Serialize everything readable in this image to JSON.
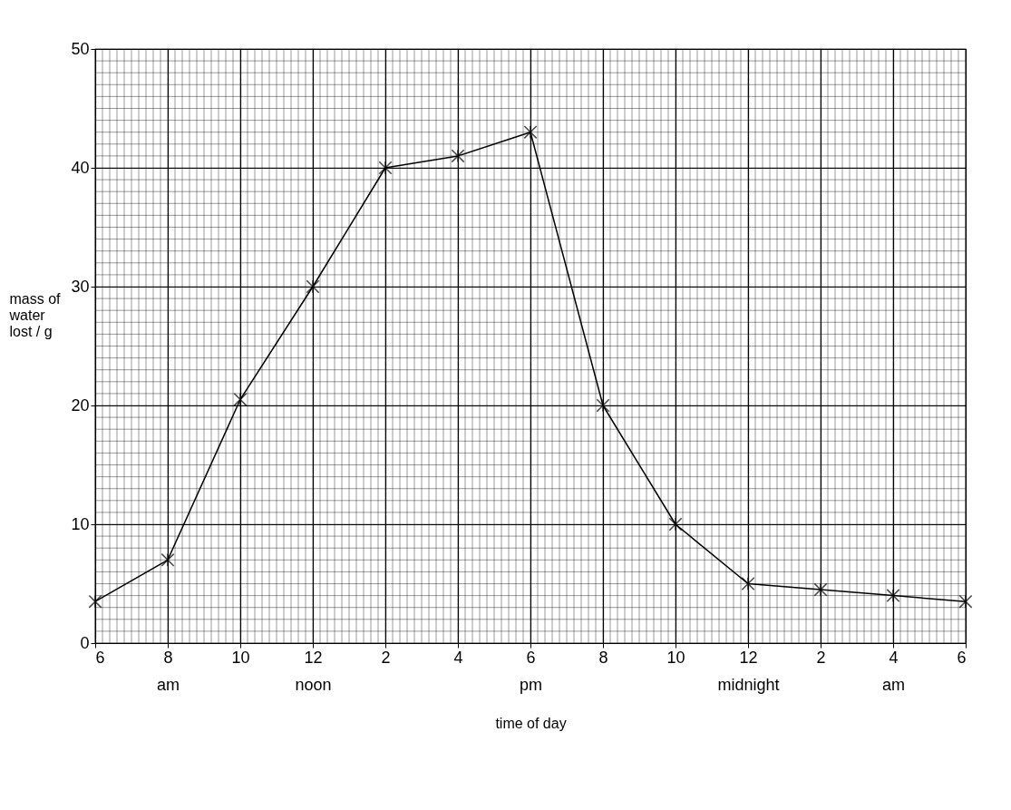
{
  "chart_data": {
    "type": "line",
    "xlabel": "time of day",
    "ylabel": "mass of\nwater\nlost / g",
    "categories": [
      "6",
      "8\nam",
      "10",
      "12\nnoon",
      "2",
      "4",
      "6\npm",
      "8",
      "10",
      "12\nmidnight",
      "2",
      "4\nam",
      "6"
    ],
    "series": [
      {
        "color": "#000000",
        "values": [
          3.5,
          7,
          20.5,
          30,
          40,
          41,
          43,
          20,
          10,
          5,
          4.5,
          4,
          3.5
        ]
      }
    ],
    "ylim": [
      0,
      50
    ],
    "yticks": [
      0,
      10,
      20,
      30,
      40,
      50
    ],
    "grid": true,
    "marker": "cross",
    "line_style": "solid"
  }
}
